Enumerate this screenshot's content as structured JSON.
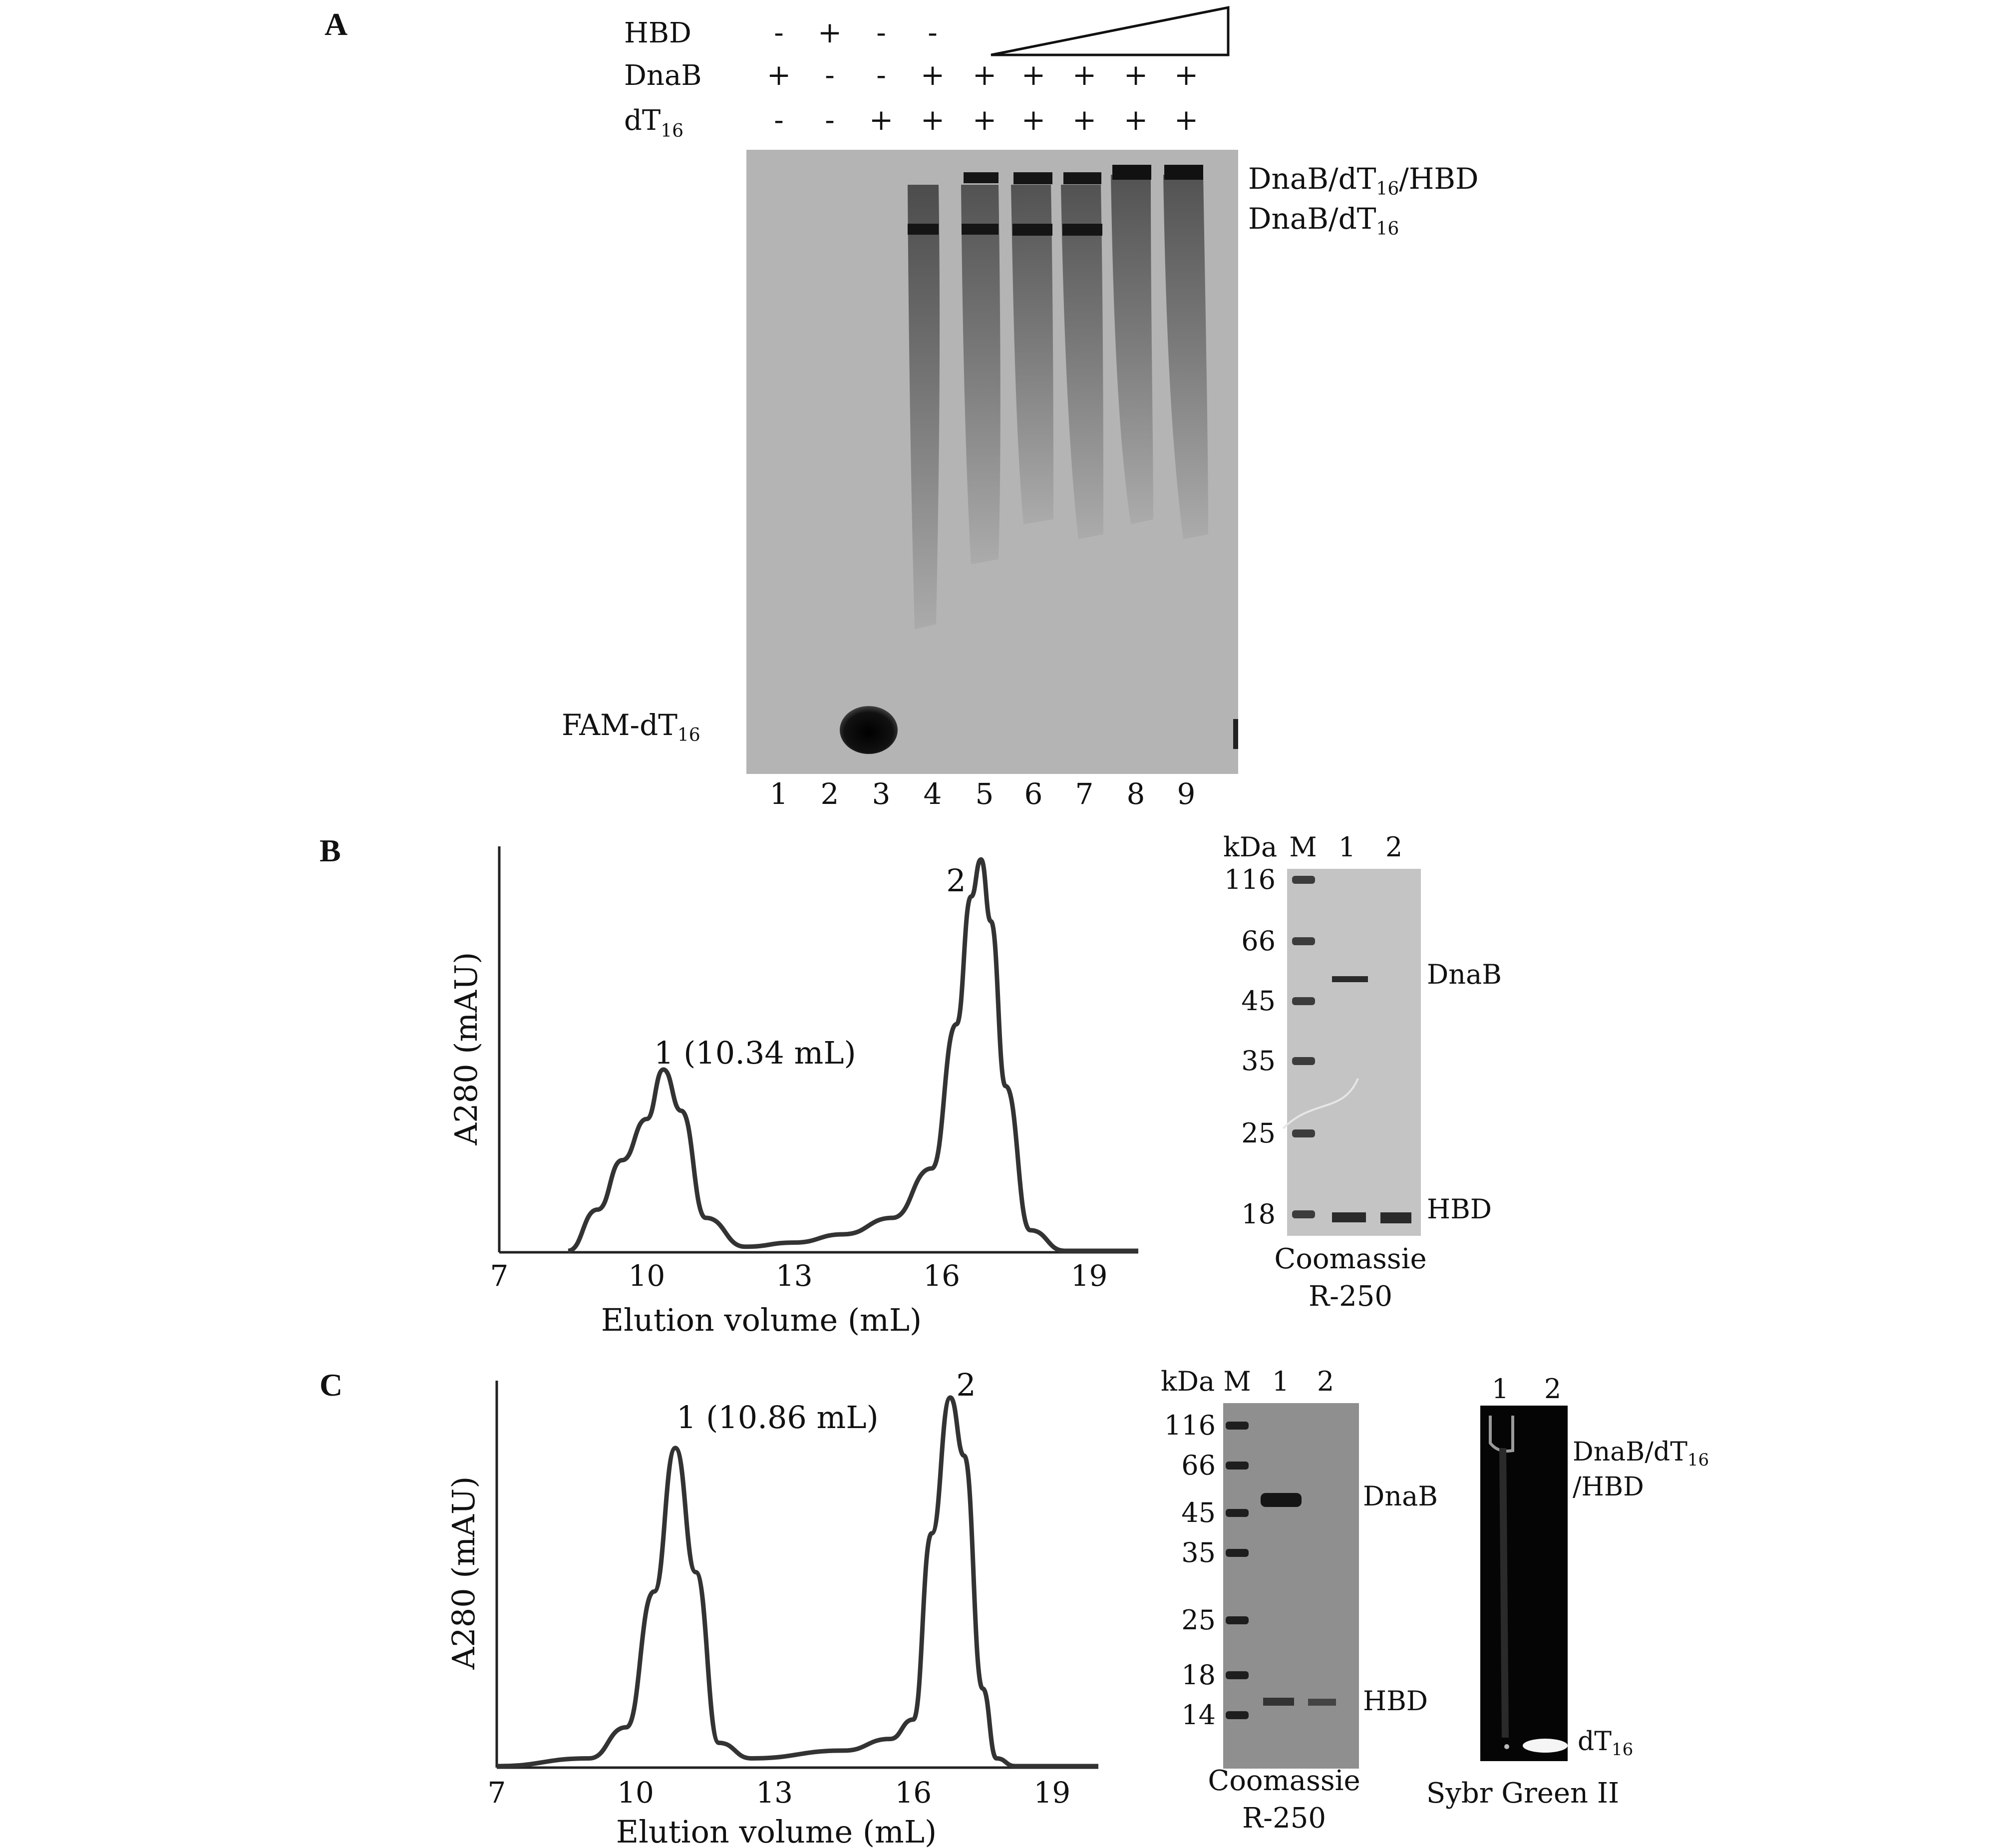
{
  "panelA": {
    "letter": "A",
    "rows": [
      {
        "label": "HBD",
        "signs": [
          "-",
          "+",
          "-",
          "-"
        ]
      },
      {
        "label": "DnaB",
        "signs": [
          "+",
          "-",
          "-",
          "+",
          "+",
          "+",
          "+",
          "+",
          "+"
        ]
      },
      {
        "label": "dT",
        "sub": "16",
        "signs": [
          "-",
          "-",
          "+",
          "+",
          "+",
          "+",
          "+",
          "+",
          "+"
        ]
      }
    ],
    "band_upper": {
      "main": "DnaB/dT",
      "sub": "16",
      "tail": "/HBD"
    },
    "band_lower": {
      "main": "DnaB/dT",
      "sub": "16"
    },
    "free_probe": {
      "main": "FAM-dT",
      "sub": "16"
    },
    "lanes": [
      "1",
      "2",
      "3",
      "4",
      "5",
      "6",
      "7",
      "8",
      "9"
    ]
  },
  "panelB": {
    "letter": "B",
    "ylabel": "A280 (mAU)",
    "xlabel": "Elution volume (mL)",
    "xticks": [
      "7",
      "10",
      "13",
      "16",
      "19"
    ],
    "peak1": "1 (10.34 mL)",
    "peak2": "2",
    "gel": {
      "unit": "kDa",
      "lanes": [
        "M",
        "1",
        "2"
      ],
      "markers": [
        "116",
        "66",
        "45",
        "35",
        "25",
        "18"
      ],
      "band_dnab": "DnaB",
      "band_hbd": "HBD",
      "stain_line1": "Coomassie",
      "stain_line2": "R-250"
    }
  },
  "panelC": {
    "letter": "C",
    "ylabel": "A280 (mAU)",
    "xlabel": "Elution volume (mL)",
    "xticks": [
      "7",
      "10",
      "13",
      "16",
      "19"
    ],
    "peak1": "1 (10.86 mL)",
    "peak2": "2",
    "gel": {
      "unit": "kDa",
      "lanes": [
        "M",
        "1",
        "2"
      ],
      "markers": [
        "116",
        "66",
        "45",
        "35",
        "25",
        "18",
        "14"
      ],
      "band_dnab": "DnaB",
      "band_hbd": "HBD",
      "stain_line1": "Coomassie",
      "stain_line2": "R-250"
    },
    "sybr": {
      "lanes": [
        "1",
        "2"
      ],
      "band_top_line1": {
        "main": "DnaB/dT",
        "sub": "16"
      },
      "band_top_line2": "/HBD",
      "band_bottom": {
        "main": "dT",
        "sub": "16"
      },
      "stain": "Sybr Green II"
    }
  },
  "chart_data": [
    {
      "type": "line",
      "title": "",
      "xlabel": "Elution volume (mL)",
      "ylabel": "A280 (mAU)",
      "xlim": [
        7,
        20
      ],
      "ylim": [
        0,
        1
      ],
      "x": [
        8.4,
        9.0,
        9.5,
        10.0,
        10.34,
        10.7,
        11.2,
        12,
        13,
        14,
        15,
        15.8,
        16.3,
        16.6,
        16.8,
        17.0,
        17.3,
        17.8,
        18.5,
        20
      ],
      "y": [
        0.0,
        0.1,
        0.22,
        0.32,
        0.44,
        0.34,
        0.08,
        0.01,
        0.02,
        0.04,
        0.08,
        0.2,
        0.55,
        0.86,
        0.95,
        0.8,
        0.4,
        0.05,
        0.0,
        0.0
      ],
      "annotations": [
        "1 (10.34 mL)",
        "2"
      ]
    },
    {
      "type": "line",
      "title": "",
      "xlabel": "Elution volume (mL)",
      "ylabel": "A280 (mAU)",
      "xlim": [
        7,
        20
      ],
      "ylim": [
        0,
        1
      ],
      "x": [
        7,
        9,
        9.8,
        10.4,
        10.86,
        11.3,
        11.8,
        12.5,
        14.5,
        15.5,
        16.0,
        16.4,
        16.8,
        17.1,
        17.5,
        17.8,
        18.2,
        20
      ],
      "y": [
        0.0,
        0.02,
        0.1,
        0.45,
        0.82,
        0.5,
        0.06,
        0.02,
        0.04,
        0.07,
        0.12,
        0.6,
        0.95,
        0.8,
        0.2,
        0.02,
        0.0,
        0.0
      ],
      "annotations": [
        "1 (10.86 mL)",
        "2"
      ]
    }
  ]
}
